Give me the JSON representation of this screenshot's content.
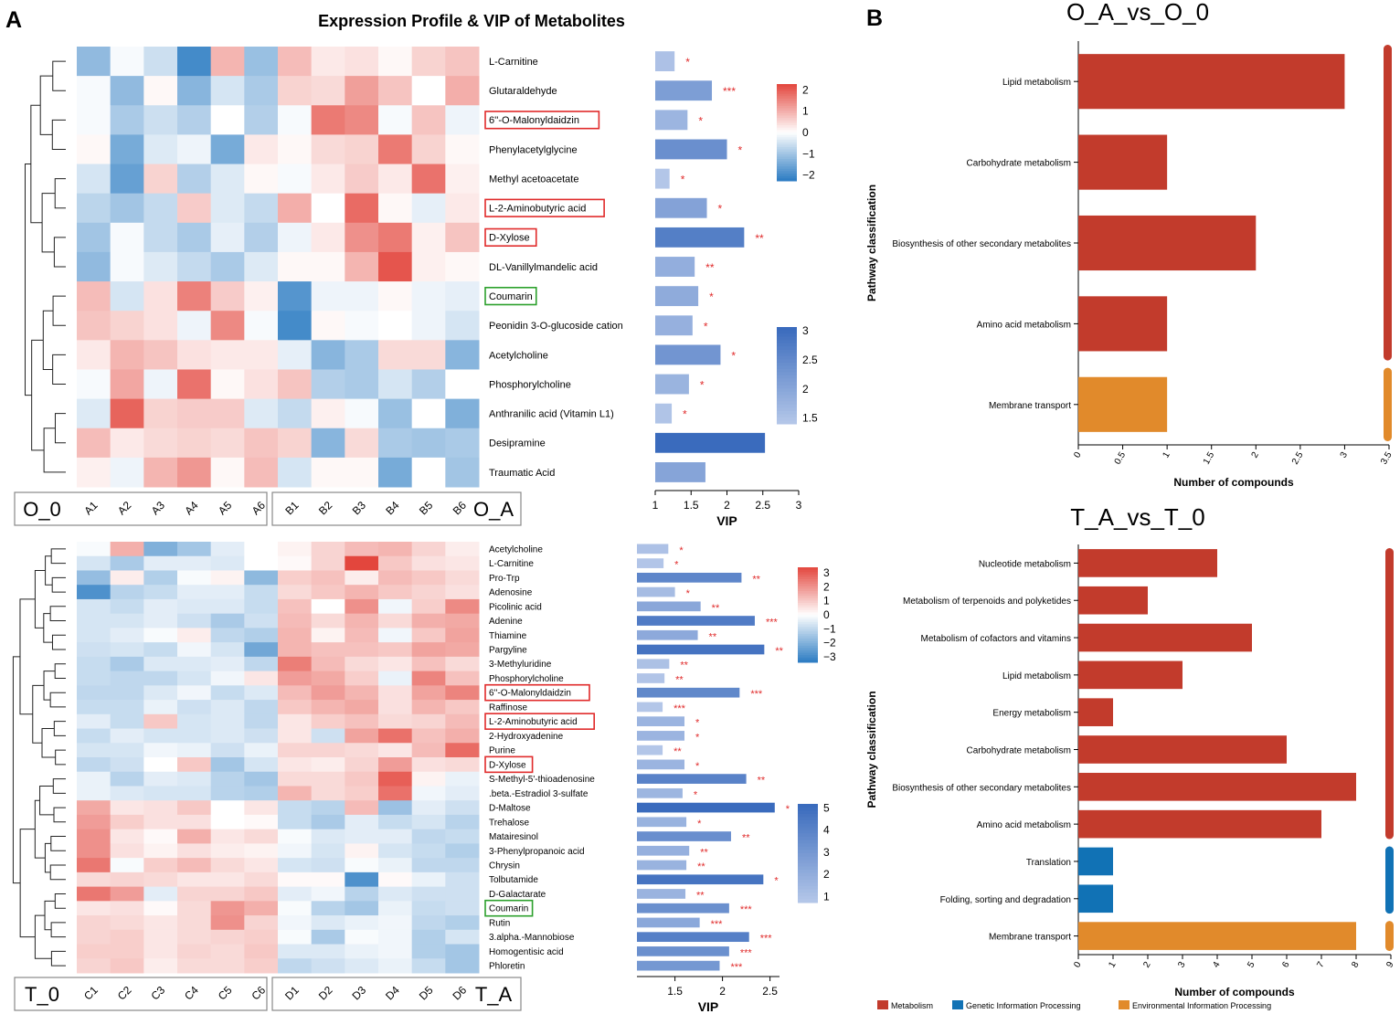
{
  "panel_a_label": "A",
  "panel_b_label": "B",
  "chart_data": [
    {
      "type": "heatmap",
      "id": "heat1",
      "title": "Expression Profile & VIP of Metabolites",
      "columns": [
        "A1",
        "A2",
        "A3",
        "A4",
        "A5",
        "A6",
        "B1",
        "B2",
        "B3",
        "B4",
        "B5",
        "B6"
      ],
      "group_labels": [
        "O_0",
        "O_A"
      ],
      "rows": [
        "L-Carnitine",
        "Glutaraldehyde",
        "6''-O-Malonyldaidzin",
        "Phenylacetylglycine",
        "Methyl acetoacetate",
        "L-2-Aminobutyric acid",
        "D-Xylose",
        "DL-Vanillylmandelic acid",
        "Coumarin",
        "Peonidin 3-O-glucoside cation",
        "Acetylcholine",
        "Phosphorylcholine",
        "Anthranilic acid (Vitamin L1)",
        "Desipramine",
        "Traumatic Acid"
      ],
      "values": [
        [
          -1.3,
          -0.1,
          -0.6,
          -2.2,
          1.0,
          -1.2,
          0.9,
          0.3,
          0.4,
          0.1,
          0.6,
          0.8
        ],
        [
          -0.1,
          -1.3,
          0.1,
          -1.4,
          -0.5,
          -1.0,
          0.6,
          0.5,
          1.3,
          0.8,
          0.0,
          1.1
        ],
        [
          -0.1,
          -1.0,
          -0.6,
          -0.9,
          0.0,
          -0.9,
          -0.1,
          1.8,
          1.6,
          -0.1,
          0.8,
          -0.2
        ],
        [
          0.1,
          -1.6,
          -0.4,
          -0.2,
          -1.6,
          0.3,
          0.1,
          0.5,
          0.6,
          1.8,
          0.6,
          0.1
        ],
        [
          -0.5,
          -1.8,
          0.6,
          -0.9,
          -0.4,
          0.1,
          -0.1,
          0.3,
          0.7,
          0.3,
          1.9,
          0.2
        ],
        [
          -0.8,
          -1.1,
          -0.7,
          0.7,
          -0.4,
          -0.7,
          1.1,
          0.0,
          2.0,
          0.1,
          -0.3,
          0.3
        ],
        [
          -1.1,
          -0.1,
          -0.7,
          -1.0,
          -0.3,
          -0.9,
          -0.2,
          0.3,
          1.5,
          1.8,
          0.2,
          0.8
        ],
        [
          -1.3,
          -0.1,
          -0.4,
          -0.7,
          -1.0,
          -0.4,
          0.1,
          0.1,
          1.0,
          2.3,
          0.2,
          0.1
        ],
        [
          0.9,
          -0.5,
          0.4,
          1.7,
          0.7,
          0.2,
          -2.0,
          -0.2,
          -0.2,
          0.1,
          -0.2,
          -0.3
        ],
        [
          0.8,
          0.6,
          0.4,
          -0.2,
          1.6,
          -0.1,
          -2.2,
          0.1,
          -0.1,
          0.0,
          -0.2,
          -0.5
        ],
        [
          0.3,
          1.0,
          0.8,
          0.4,
          0.3,
          0.3,
          -0.3,
          -1.4,
          -1.0,
          0.5,
          0.5,
          -1.4
        ],
        [
          -0.1,
          1.2,
          -0.2,
          1.9,
          0.1,
          0.4,
          0.8,
          -0.9,
          -1.0,
          -0.5,
          -0.9,
          0.0
        ],
        [
          -0.4,
          2.1,
          0.6,
          0.7,
          0.7,
          -0.4,
          -0.7,
          0.2,
          -0.1,
          -1.2,
          0.0,
          -1.5
        ],
        [
          0.9,
          0.3,
          0.5,
          0.6,
          0.5,
          0.8,
          0.6,
          -1.4,
          0.5,
          -1.0,
          -1.1,
          -1.0
        ],
        [
          0.2,
          -0.2,
          1.0,
          1.4,
          0.1,
          0.9,
          -0.5,
          0.1,
          0.1,
          -1.6,
          0.0,
          -1.1
        ]
      ],
      "color_range": [
        -2.5,
        2.5
      ],
      "color_ticks": [
        "2",
        "1",
        "0",
        "−1",
        "−2"
      ],
      "vip": [
        1.27,
        1.79,
        1.45,
        2.0,
        1.2,
        1.72,
        2.24,
        1.55,
        1.6,
        1.52,
        1.91,
        1.47,
        1.23,
        2.53,
        1.7
      ],
      "significance": [
        "*",
        "***",
        "*",
        "*",
        "*",
        "*",
        "**",
        "**",
        "*",
        "*",
        "*",
        "*",
        "*",
        "",
        ""
      ],
      "vip_axis": {
        "label": "VIP",
        "xlim": [
          1,
          3
        ],
        "ticks": [
          "1",
          "1.5",
          "2",
          "2.5",
          "3"
        ]
      },
      "vip_color_ticks": [
        "3",
        "2.5",
        "2",
        "1.5"
      ],
      "boxed_red": [
        "6''-O-Malonyldaidzin",
        "L-2-Aminobutyric acid",
        "D-Xylose"
      ],
      "boxed_green": [
        "Coumarin"
      ]
    },
    {
      "type": "heatmap",
      "id": "heat2",
      "columns": [
        "C1",
        "C2",
        "C3",
        "C4",
        "C5",
        "C6",
        "D1",
        "D2",
        "D3",
        "D4",
        "D5",
        "D6"
      ],
      "group_labels": [
        "T_0",
        "T_A"
      ],
      "rows": [
        "Acetylcholine",
        "L-Carnitine",
        "Pro-Trp",
        "Adenosine",
        "Picolinic acid",
        "Adenine",
        "Thiamine",
        "Pargyline",
        "3-Methyluridine",
        "Phosphorylcholine",
        "6''-O-Malonyldaidzin",
        "Raffinose",
        "L-2-Aminobutyric acid",
        "2-Hydroxyadenine",
        "Purine",
        "D-Xylose",
        "S-Methyl-5'-thioadenosine",
        ".beta.-Estradiol 3-sulfate",
        "D-Maltose",
        "Trehalose",
        "Matairesinol",
        "3-Phenylpropanoic acid",
        "Chrysin",
        "Tolbutamide",
        "D-Galactarate",
        "Coumarin",
        "Rutin",
        "3.alpha.-Mannobiose",
        "Homogentisic acid",
        "Phloretin"
      ],
      "values": [
        [
          -0.1,
          1.3,
          -1.8,
          -1.3,
          -0.4,
          0.0,
          0.2,
          0.7,
          1.1,
          1.2,
          0.7,
          0.3
        ],
        [
          -0.6,
          -1.2,
          -0.4,
          -0.4,
          -0.5,
          0.0,
          0.1,
          0.7,
          3.0,
          0.9,
          0.5,
          0.4
        ],
        [
          -1.5,
          0.3,
          -1.1,
          -0.1,
          0.2,
          -1.6,
          0.8,
          1.0,
          0.3,
          1.1,
          0.9,
          0.6
        ],
        [
          -2.5,
          -1.0,
          -0.8,
          -0.4,
          -0.4,
          -0.8,
          0.6,
          0.9,
          1.2,
          0.9,
          0.7,
          0.5
        ],
        [
          -0.6,
          -0.8,
          -0.4,
          -0.5,
          -0.5,
          -0.8,
          1.0,
          0.0,
          1.8,
          -0.2,
          0.8,
          1.9
        ],
        [
          -0.6,
          -0.6,
          -0.4,
          -0.7,
          -1.2,
          -0.7,
          1.1,
          0.6,
          1.2,
          0.6,
          1.3,
          1.4
        ],
        [
          -0.6,
          -0.4,
          -0.1,
          0.3,
          -0.9,
          -1.1,
          1.2,
          0.2,
          1.1,
          -0.2,
          0.9,
          1.5
        ],
        [
          -0.7,
          -0.6,
          -0.8,
          -0.2,
          -0.6,
          -2.0,
          1.2,
          1.0,
          1.0,
          0.9,
          1.5,
          1.4
        ],
        [
          -0.8,
          -1.2,
          -0.5,
          -0.5,
          -0.4,
          -0.9,
          2.1,
          1.1,
          0.6,
          0.4,
          1.0,
          0.6
        ],
        [
          -0.8,
          -0.9,
          -0.9,
          -0.6,
          -0.2,
          0.4,
          1.6,
          1.4,
          0.8,
          -0.3,
          2.0,
          1.0
        ],
        [
          -0.9,
          -0.9,
          -0.5,
          -0.2,
          -0.8,
          -0.5,
          1.1,
          1.6,
          1.2,
          0.5,
          1.5,
          2.0
        ],
        [
          -0.8,
          -0.8,
          -0.3,
          -0.7,
          -0.5,
          -0.9,
          0.9,
          1.2,
          1.4,
          0.5,
          1.2,
          0.9
        ],
        [
          -0.4,
          -0.8,
          0.9,
          -0.6,
          -0.5,
          -0.9,
          0.4,
          0.8,
          1.0,
          0.6,
          0.7,
          1.1
        ],
        [
          -0.8,
          -0.4,
          -0.6,
          -0.6,
          -0.5,
          -0.7,
          0.4,
          -0.7,
          1.5,
          2.3,
          1.0,
          1.3
        ],
        [
          -0.6,
          -0.6,
          -0.2,
          -0.3,
          -0.7,
          -0.3,
          0.7,
          0.7,
          0.6,
          0.4,
          1.1,
          2.4
        ],
        [
          -0.9,
          -0.7,
          0.0,
          0.9,
          -1.3,
          -0.6,
          0.4,
          0.3,
          0.7,
          1.6,
          0.5,
          0.6
        ],
        [
          -0.3,
          -1.0,
          -0.4,
          -0.5,
          -1.0,
          -1.3,
          0.6,
          0.6,
          0.9,
          2.6,
          0.2,
          -0.3
        ],
        [
          -0.3,
          -0.5,
          -0.6,
          -0.6,
          -1.0,
          -1.1,
          1.2,
          0.6,
          0.8,
          2.3,
          -0.2,
          -0.4
        ],
        [
          1.4,
          0.4,
          0.5,
          0.9,
          0.0,
          0.4,
          -0.8,
          -1.0,
          1.1,
          -1.4,
          -0.4,
          -0.7
        ],
        [
          1.6,
          0.8,
          0.5,
          0.5,
          0.0,
          0.1,
          -0.8,
          -1.2,
          -0.4,
          -0.8,
          -0.6,
          -1.0
        ],
        [
          1.8,
          0.4,
          0.1,
          1.3,
          0.4,
          0.6,
          -0.1,
          -0.5,
          -0.4,
          -0.4,
          -0.9,
          -0.8
        ],
        [
          1.8,
          0.5,
          0.2,
          0.5,
          0.3,
          0.2,
          -0.2,
          -0.6,
          0.2,
          -0.6,
          -0.8,
          -1.1
        ],
        [
          2.2,
          -0.1,
          0.8,
          1.1,
          0.6,
          0.4,
          -0.6,
          -0.7,
          -0.1,
          -0.3,
          -0.9,
          -0.9
        ],
        [
          0.6,
          0.7,
          0.6,
          0.4,
          0.4,
          0.6,
          0.1,
          0.1,
          -2.5,
          0.1,
          -0.3,
          -0.7
        ],
        [
          2.2,
          1.6,
          -0.4,
          0.7,
          0.7,
          0.9,
          -0.4,
          -0.2,
          -1.0,
          -0.5,
          -0.7,
          -0.7
        ],
        [
          0.4,
          0.5,
          0.1,
          0.6,
          1.7,
          1.3,
          -0.1,
          -1.0,
          -1.3,
          -0.3,
          -0.8,
          -0.7
        ],
        [
          0.7,
          0.6,
          0.4,
          0.6,
          1.8,
          0.7,
          -0.2,
          -0.5,
          -0.3,
          -0.2,
          -0.9,
          -1.1
        ],
        [
          0.7,
          0.8,
          0.4,
          0.6,
          0.7,
          0.8,
          -0.1,
          -1.2,
          -0.1,
          -0.2,
          -1.1,
          -0.6
        ],
        [
          0.8,
          0.8,
          0.4,
          0.7,
          0.6,
          0.9,
          -0.5,
          -0.5,
          -0.3,
          -0.2,
          -1.1,
          -1.3
        ],
        [
          0.7,
          0.9,
          0.3,
          0.6,
          0.6,
          0.8,
          -0.9,
          -0.7,
          -0.5,
          -0.3,
          -0.8,
          -1.3
        ]
      ],
      "color_range": [
        -3,
        3
      ],
      "color_ticks": [
        "3",
        "2",
        "1",
        "0",
        "−1",
        "−2",
        "−3"
      ],
      "vip": [
        1.43,
        1.38,
        2.2,
        1.5,
        1.77,
        2.34,
        1.74,
        2.44,
        1.44,
        1.39,
        2.18,
        1.37,
        1.6,
        1.6,
        1.37,
        1.6,
        2.25,
        1.58,
        2.55,
        1.62,
        2.09,
        1.65,
        1.62,
        2.43,
        1.61,
        2.07,
        1.76,
        2.28,
        2.07,
        1.97
      ],
      "significance": [
        "*",
        "*",
        "**",
        "*",
        "**",
        "***",
        "**",
        "**",
        "**",
        "**",
        "***",
        "***",
        "*",
        "*",
        "**",
        "*",
        "**",
        "*",
        "*",
        "*",
        "**",
        "**",
        "**",
        "*",
        "**",
        "***",
        "***",
        "***",
        "***",
        "***"
      ],
      "vip_axis": {
        "label": "VIP",
        "xlim": [
          1.1,
          2.6
        ],
        "ticks": [
          "1.5",
          "2",
          "2.5"
        ]
      },
      "vip_color_ticks": [
        "5",
        "4",
        "3",
        "2",
        "1"
      ],
      "boxed_red": [
        "6''-O-Malonyldaidzin",
        "L-2-Aminobutyric acid",
        "D-Xylose"
      ],
      "boxed_green": [
        "Coumarin"
      ]
    },
    {
      "type": "bar",
      "id": "bar1",
      "orientation": "horizontal",
      "title": "O_A_vs_O_0",
      "categories": [
        "Lipid metabolism",
        "Carbohydrate metabolism",
        "Biosynthesis of other secondary metabolites",
        "Amino acid metabolism",
        "Membrane transport"
      ],
      "values": [
        3,
        1,
        2,
        1,
        1
      ],
      "classes": [
        "Metabolism",
        "Metabolism",
        "Metabolism",
        "Metabolism",
        "Environmental Information Processing"
      ],
      "xlabel": "Number of compounds",
      "ylabel": "Pathway classification",
      "xlim": [
        0,
        3.5
      ],
      "ticks": [
        "0",
        "0.5",
        "1",
        "1.5",
        "2",
        "2.5",
        "3",
        "3.5"
      ]
    },
    {
      "type": "bar",
      "id": "bar2",
      "orientation": "horizontal",
      "title": "T_A_vs_T_0",
      "categories": [
        "Nucleotide metabolism",
        "Metabolism of terpenoids and polyketides",
        "Metabolism of cofactors and vitamins",
        "Lipid metabolism",
        "Energy metabolism",
        "Carbohydrate metabolism",
        "Biosynthesis of other secondary metabolites",
        "Amino acid metabolism",
        "Translation",
        "Folding, sorting and degradation",
        "Membrane transport"
      ],
      "values": [
        4,
        2,
        5,
        3,
        1,
        6,
        8,
        7,
        1,
        1,
        8
      ],
      "classes": [
        "Metabolism",
        "Metabolism",
        "Metabolism",
        "Metabolism",
        "Metabolism",
        "Metabolism",
        "Metabolism",
        "Metabolism",
        "Genetic Information Processing",
        "Genetic Information Processing",
        "Environmental Information Processing"
      ],
      "xlabel": "Number of compounds",
      "ylabel": "Pathway classification",
      "xlim": [
        0,
        9
      ],
      "ticks": [
        "0",
        "1",
        "2",
        "3",
        "4",
        "5",
        "6",
        "7",
        "8",
        "9"
      ]
    }
  ],
  "legend": [
    {
      "name": "Metabolism",
      "color": "#c23b2c"
    },
    {
      "name": "Genetic Information Processing",
      "color": "#1172b5"
    },
    {
      "name": "Environmental Information Processing",
      "color": "#e18a2b"
    }
  ],
  "colors": {
    "heat_low": "#2b7bc2",
    "heat_mid": "#ffffff",
    "heat_high": "#e3463d",
    "vip_dark": "#3a6bbd",
    "vip_light": "#b3c6e8",
    "star": "#e02a2a",
    "box_red": "#e02a2a",
    "box_green": "#2ca02c"
  }
}
